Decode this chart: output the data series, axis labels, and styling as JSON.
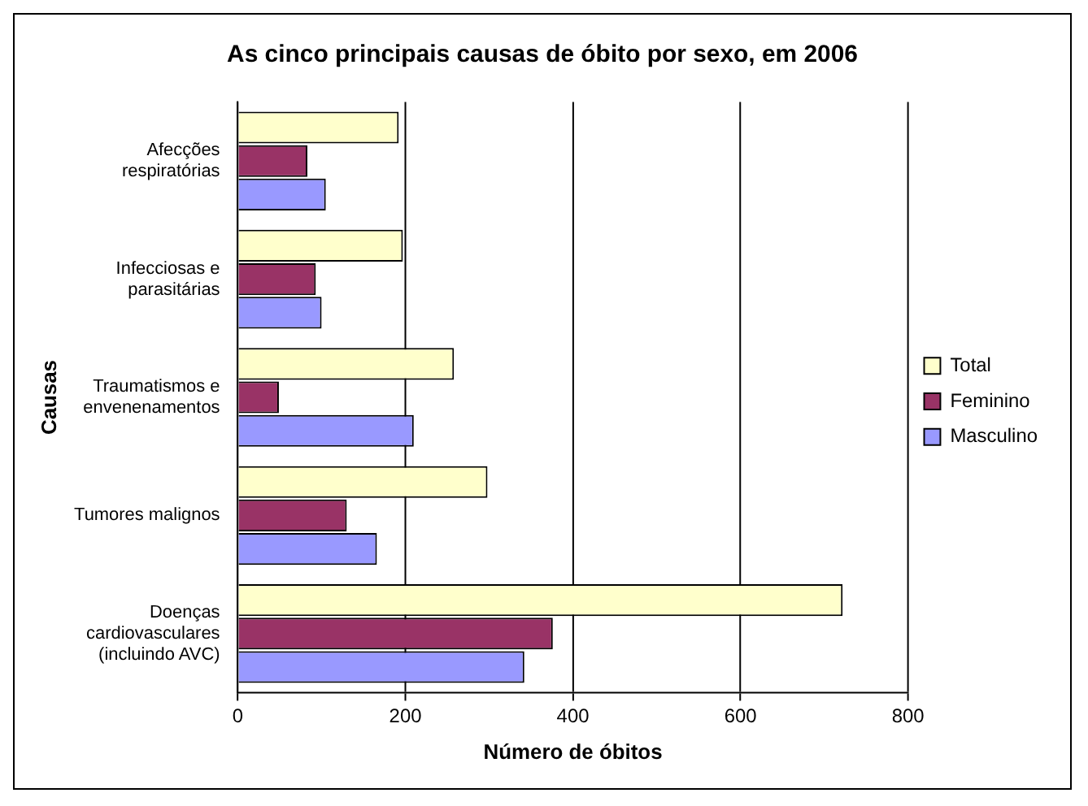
{
  "chart_data": {
    "type": "bar",
    "orientation": "horizontal",
    "title": "As cinco principais causas de óbito por sexo, em 2006",
    "xlabel": "Número de óbitos",
    "ylabel": "Causas",
    "categories": [
      "Afecções respiratórias",
      "Infecciosas e parasitárias",
      "Traumatismos e envenenamentos",
      "Tumores malignos",
      "Doenças cardiovasculares (incluindo AVC)"
    ],
    "series": [
      {
        "name": "Total",
        "color": "#ffffcc",
        "values": [
          192,
          197,
          258,
          298,
          722
        ]
      },
      {
        "name": "Feminino",
        "color": "#993366",
        "values": [
          83,
          93,
          49,
          130,
          376
        ]
      },
      {
        "name": "Masculino",
        "color": "#9999ff",
        "values": [
          105,
          100,
          210,
          166,
          342
        ]
      }
    ],
    "xlim": [
      0,
      800
    ],
    "xticks": [
      0,
      200,
      400,
      600,
      800
    ],
    "grid": "x",
    "legend": "right"
  }
}
